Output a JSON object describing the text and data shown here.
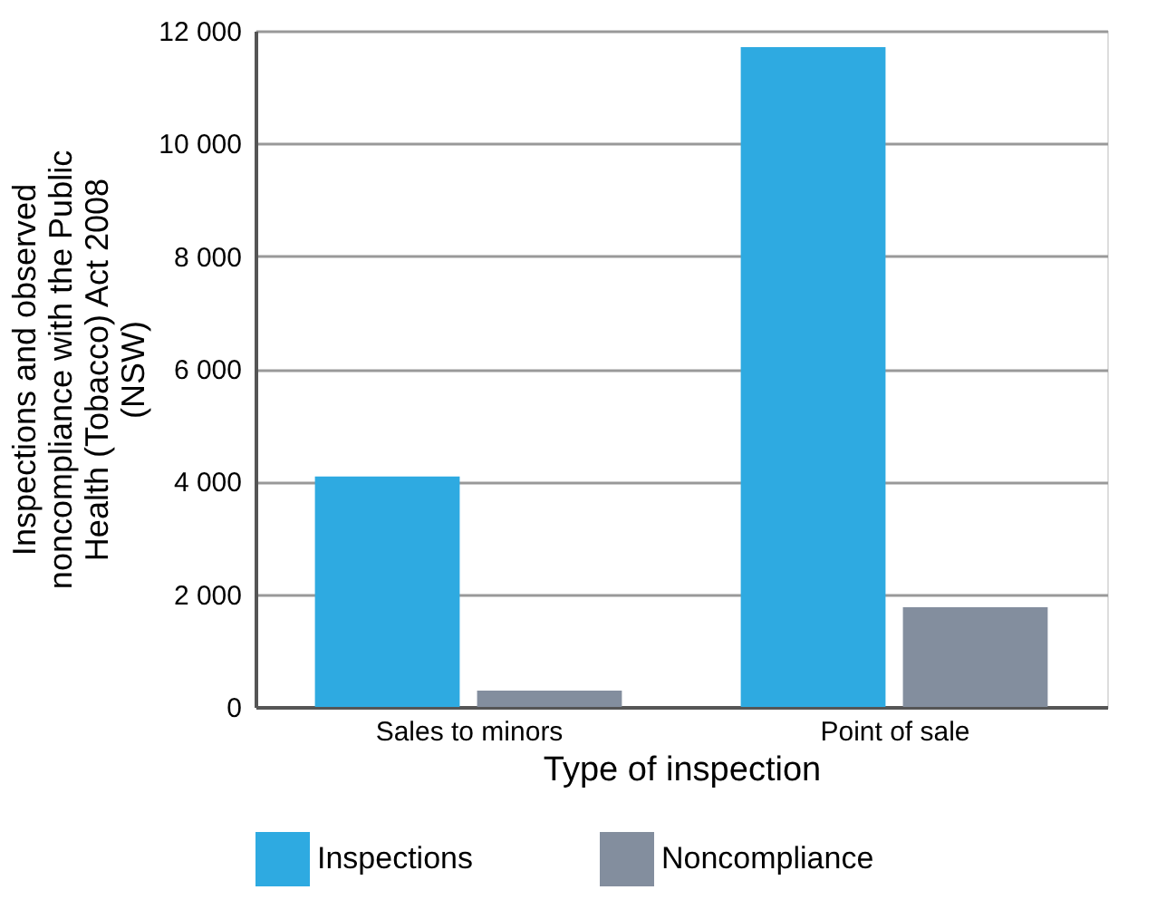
{
  "chart_data": {
    "type": "bar",
    "xlabel": "Type of inspection",
    "ylabel": "Inspections and observed noncompliance with the Public Health (Tobacco) Act 2008 (NSW)",
    "categories": [
      "Sales to minors",
      "Point of sale"
    ],
    "series": [
      {
        "name": "Inspections",
        "color": "#2eaae1",
        "values": [
          4090,
          11710
        ]
      },
      {
        "name": "Noncompliance",
        "color": "#838e9e",
        "values": [
          290,
          1770
        ]
      }
    ],
    "ylim": [
      0,
      12000
    ],
    "yticks": [
      {
        "value": 0,
        "label": "0"
      },
      {
        "value": 2000,
        "label": "2 000"
      },
      {
        "value": 4000,
        "label": "4 000"
      },
      {
        "value": 6000,
        "label": "6 000"
      },
      {
        "value": 8000,
        "label": "8 000"
      },
      {
        "value": 10000,
        "label": "10 000"
      },
      {
        "value": 12000,
        "label": "12 000"
      }
    ],
    "grid": "y",
    "legend": "bottom"
  }
}
